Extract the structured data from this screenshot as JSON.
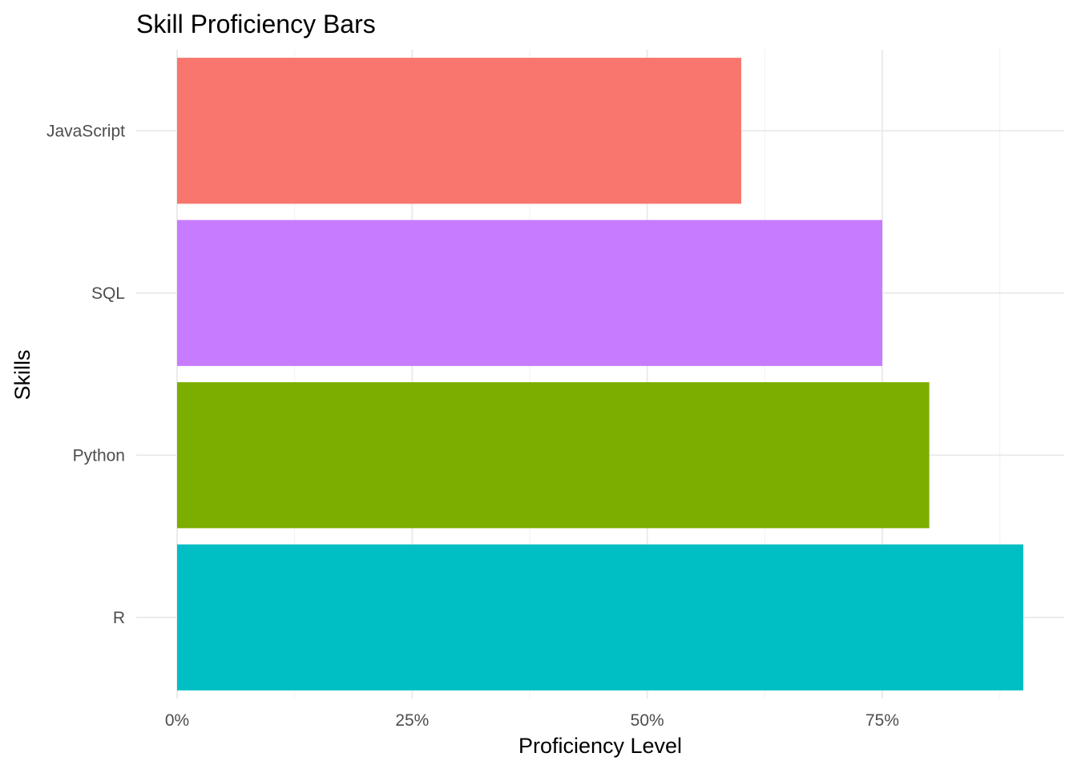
{
  "chart_data": {
    "type": "bar",
    "orientation": "horizontal",
    "title": "Skill Proficiency Bars",
    "xlabel": "Proficiency Level",
    "ylabel": "Skills",
    "categories": [
      "R",
      "Python",
      "SQL",
      "JavaScript"
    ],
    "values": [
      0.9,
      0.8,
      0.75,
      0.6
    ],
    "colors": [
      "#00BFC4",
      "#7CAE00",
      "#C77CFF",
      "#F8766D"
    ],
    "xlim": [
      0,
      0.9
    ],
    "x_ticks": [
      0,
      0.25,
      0.5,
      0.75
    ],
    "x_tick_labels": [
      "0%",
      "25%",
      "50%",
      "75%"
    ],
    "grid": true,
    "legend": "none"
  }
}
